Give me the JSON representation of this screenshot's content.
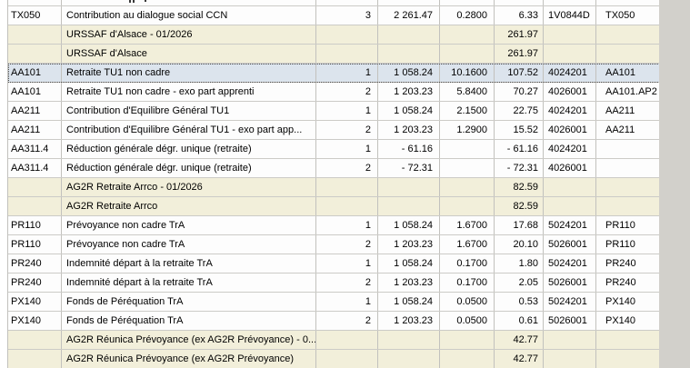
{
  "colors": {
    "selected_row_bg": "#dce4ed",
    "group_row_bg": "#f2efda",
    "grid_line": "#c2c1bd",
    "row_line": "#cccbc7",
    "window_background": "#d2d0cb",
    "text": "#000000"
  },
  "table": {
    "rows": [
      {
        "kind": "detail",
        "selected": false,
        "code": "TX050",
        "label": "Contribution au dialogue social CCN",
        "seq": "3",
        "base": "2 261.47",
        "rate": "0.2800",
        "amount": "6.33",
        "account": "1V0844D",
        "code_right": "TX050"
      },
      {
        "kind": "group",
        "selected": false,
        "code": "",
        "label": "URSSAF d'Alsace - 01/2026",
        "seq": "",
        "base": "",
        "rate": "",
        "amount": "261.97",
        "account": "",
        "code_right": ""
      },
      {
        "kind": "group",
        "selected": false,
        "code": "",
        "label": "URSSAF d'Alsace",
        "seq": "",
        "base": "",
        "rate": "",
        "amount": "261.97",
        "account": "",
        "code_right": ""
      },
      {
        "kind": "detail",
        "selected": true,
        "code": "AA101",
        "label": "Retraite TU1 non cadre",
        "seq": "1",
        "base": "1 058.24",
        "rate": "10.1600",
        "amount": "107.52",
        "account": "4024201",
        "code_right": "AA101"
      },
      {
        "kind": "detail",
        "selected": false,
        "code": "AA101",
        "label": "Retraite TU1 non cadre - exo part apprenti",
        "seq": "2",
        "base": "1 203.23",
        "rate": "5.8400",
        "amount": "70.27",
        "account": "4026001",
        "code_right": "AA101.AP2"
      },
      {
        "kind": "detail",
        "selected": false,
        "code": "AA211",
        "label": "Contribution d'Equilibre Général TU1",
        "seq": "1",
        "base": "1 058.24",
        "rate": "2.1500",
        "amount": "22.75",
        "account": "4024201",
        "code_right": "AA211"
      },
      {
        "kind": "detail",
        "selected": false,
        "code": "AA211",
        "label": "Contribution d'Equilibre Général TU1 - exo part app...",
        "seq": "2",
        "base": "1 203.23",
        "rate": "1.2900",
        "amount": "15.52",
        "account": "4026001",
        "code_right": "AA211"
      },
      {
        "kind": "detail",
        "selected": false,
        "code": "AA311.4",
        "label": "Réduction générale dégr. unique (retraite)",
        "seq": "1",
        "base": "- 61.16",
        "rate": "",
        "amount": "- 61.16",
        "account": "4024201",
        "code_right": ""
      },
      {
        "kind": "detail",
        "selected": false,
        "code": "AA311.4",
        "label": "Réduction générale dégr. unique (retraite)",
        "seq": "2",
        "base": "- 72.31",
        "rate": "",
        "amount": "- 72.31",
        "account": "4026001",
        "code_right": ""
      },
      {
        "kind": "group",
        "selected": false,
        "code": "",
        "label": "AG2R Retraite Arrco - 01/2026",
        "seq": "",
        "base": "",
        "rate": "",
        "amount": "82.59",
        "account": "",
        "code_right": ""
      },
      {
        "kind": "group",
        "selected": false,
        "code": "",
        "label": "AG2R Retraite Arrco",
        "seq": "",
        "base": "",
        "rate": "",
        "amount": "82.59",
        "account": "",
        "code_right": ""
      },
      {
        "kind": "detail",
        "selected": false,
        "code": "PR110",
        "label": "Prévoyance non cadre TrA",
        "seq": "1",
        "base": "1 058.24",
        "rate": "1.6700",
        "amount": "17.68",
        "account": "5024201",
        "code_right": "PR110"
      },
      {
        "kind": "detail",
        "selected": false,
        "code": "PR110",
        "label": "Prévoyance non cadre TrA",
        "seq": "2",
        "base": "1 203.23",
        "rate": "1.6700",
        "amount": "20.10",
        "account": "5026001",
        "code_right": "PR110"
      },
      {
        "kind": "detail",
        "selected": false,
        "code": "PR240",
        "label": "Indemnité départ à la retraite TrA",
        "seq": "1",
        "base": "1 058.24",
        "rate": "0.1700",
        "amount": "1.80",
        "account": "5024201",
        "code_right": "PR240"
      },
      {
        "kind": "detail",
        "selected": false,
        "code": "PR240",
        "label": "Indemnité départ à la retraite TrA",
        "seq": "2",
        "base": "1 203.23",
        "rate": "0.1700",
        "amount": "2.05",
        "account": "5026001",
        "code_right": "PR240"
      },
      {
        "kind": "detail",
        "selected": false,
        "code": "PX140",
        "label": "Fonds de Péréquation TrA",
        "seq": "1",
        "base": "1 058.24",
        "rate": "0.0500",
        "amount": "0.53",
        "account": "5024201",
        "code_right": "PX140"
      },
      {
        "kind": "detail",
        "selected": false,
        "code": "PX140",
        "label": "Fonds de Péréquation TrA",
        "seq": "2",
        "base": "1 203.23",
        "rate": "0.0500",
        "amount": "0.61",
        "account": "5026001",
        "code_right": "PX140"
      },
      {
        "kind": "group",
        "selected": false,
        "code": "",
        "label": "AG2R Réunica Prévoyance (ex AG2R Prévoyance) - 0...",
        "seq": "",
        "base": "",
        "rate": "",
        "amount": "42.77",
        "account": "",
        "code_right": ""
      },
      {
        "kind": "group",
        "selected": false,
        "code": "",
        "label": "AG2R Réunica Prévoyance (ex AG2R Prévoyance)",
        "seq": "",
        "base": "",
        "rate": "",
        "amount": "42.77",
        "account": "",
        "code_right": ""
      }
    ]
  }
}
